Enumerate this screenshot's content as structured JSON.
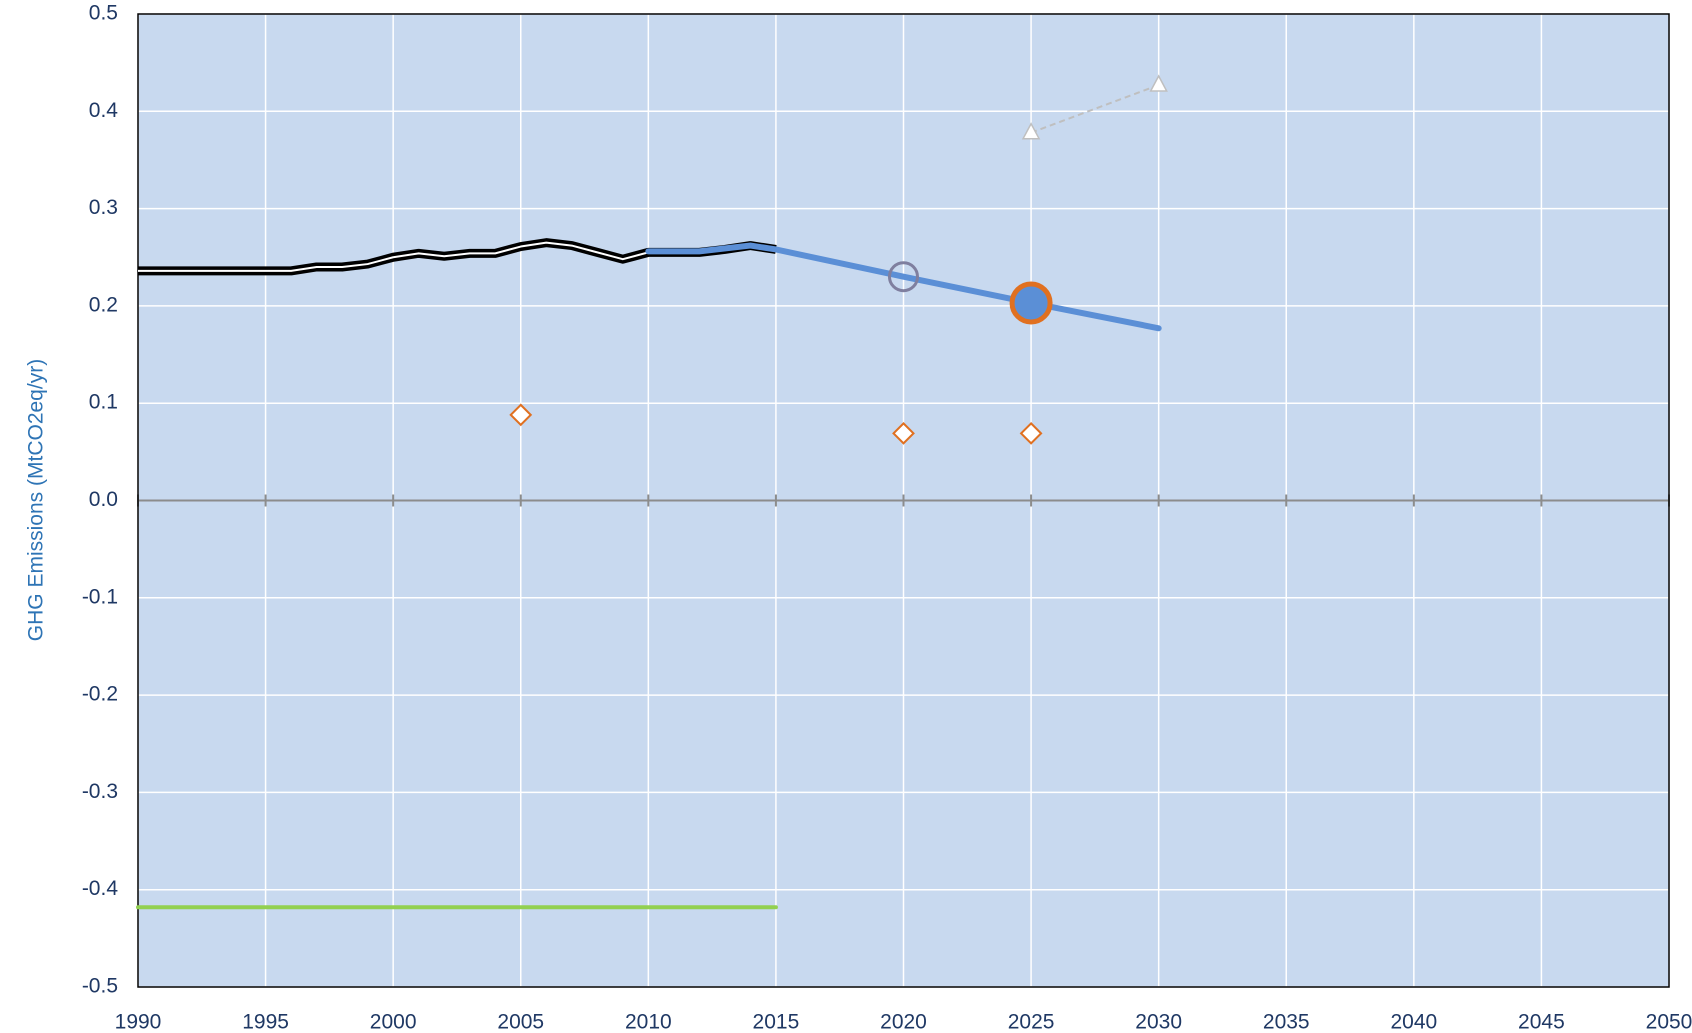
{
  "chart_data": {
    "type": "line",
    "y_label": "GHG Emissions (MtCO2eq/yr)",
    "xlim": [
      1990,
      2050
    ],
    "xticks": [
      1990,
      1995,
      2000,
      2005,
      2010,
      2015,
      2020,
      2025,
      2030,
      2035,
      2040,
      2045,
      2050
    ],
    "ylim": [
      -0.5,
      0.5
    ],
    "yticks": [
      0.5,
      0.4,
      0.3,
      0.2,
      0.1,
      {
        "value": 0,
        "label": "0.0"
      },
      -0.1,
      -0.2,
      -0.3,
      -0.4,
      -0.5
    ],
    "grid": true,
    "series": [
      {
        "color": "#000000",
        "line": "double",
        "x": [
          1990,
          1991,
          1992,
          1993,
          1994,
          1995,
          1996,
          1997,
          1998,
          1999,
          2000,
          2001,
          2002,
          2003,
          2004,
          2005,
          2006,
          2007,
          2008,
          2009,
          2010,
          2011,
          2012,
          2013,
          2014,
          2015
        ],
        "values": [
          0.236,
          0.236,
          0.236,
          0.236,
          0.236,
          0.236,
          0.236,
          0.24,
          0.24,
          0.243,
          0.25,
          0.254,
          0.251,
          0.254,
          0.254,
          0.261,
          0.265,
          0.262,
          0.255,
          0.248,
          0.255,
          0.255,
          0.255,
          0.258,
          0.262,
          0.258
        ]
      },
      {
        "color": "#5b8fd6",
        "line": "solid",
        "x": [
          2010,
          2012,
          2014,
          2015,
          2020,
          2025,
          2030
        ],
        "values": [
          0.256,
          0.256,
          0.262,
          0.258,
          0.23,
          0.203,
          0.177
        ]
      },
      {
        "color": "#bfbfbf",
        "line": "dashed",
        "marker": "triangle",
        "marker_fill": "#ffffff",
        "x": [
          2025,
          2030
        ],
        "values": [
          0.378,
          0.427
        ]
      },
      {
        "color": "#e07020",
        "line": "none",
        "marker": "diamond",
        "marker_fill": "#ffffff",
        "x": [
          2005,
          2020,
          2025
        ],
        "values": [
          0.088,
          0.069,
          0.069
        ]
      },
      {
        "color": "#7f7f9f",
        "line": "none",
        "marker": "circle",
        "marker_fill": "none",
        "x": [
          2020
        ],
        "values": [
          0.23
        ]
      },
      {
        "color": "#e07020",
        "line": "none",
        "marker": "big-circle",
        "marker_fill": "#5b8fd6",
        "x": [
          2025
        ],
        "values": [
          0.203
        ]
      },
      {
        "color": "#92d050",
        "line": "solid",
        "x": [
          1990,
          2015
        ],
        "values": [
          -0.418,
          -0.418
        ]
      }
    ]
  }
}
